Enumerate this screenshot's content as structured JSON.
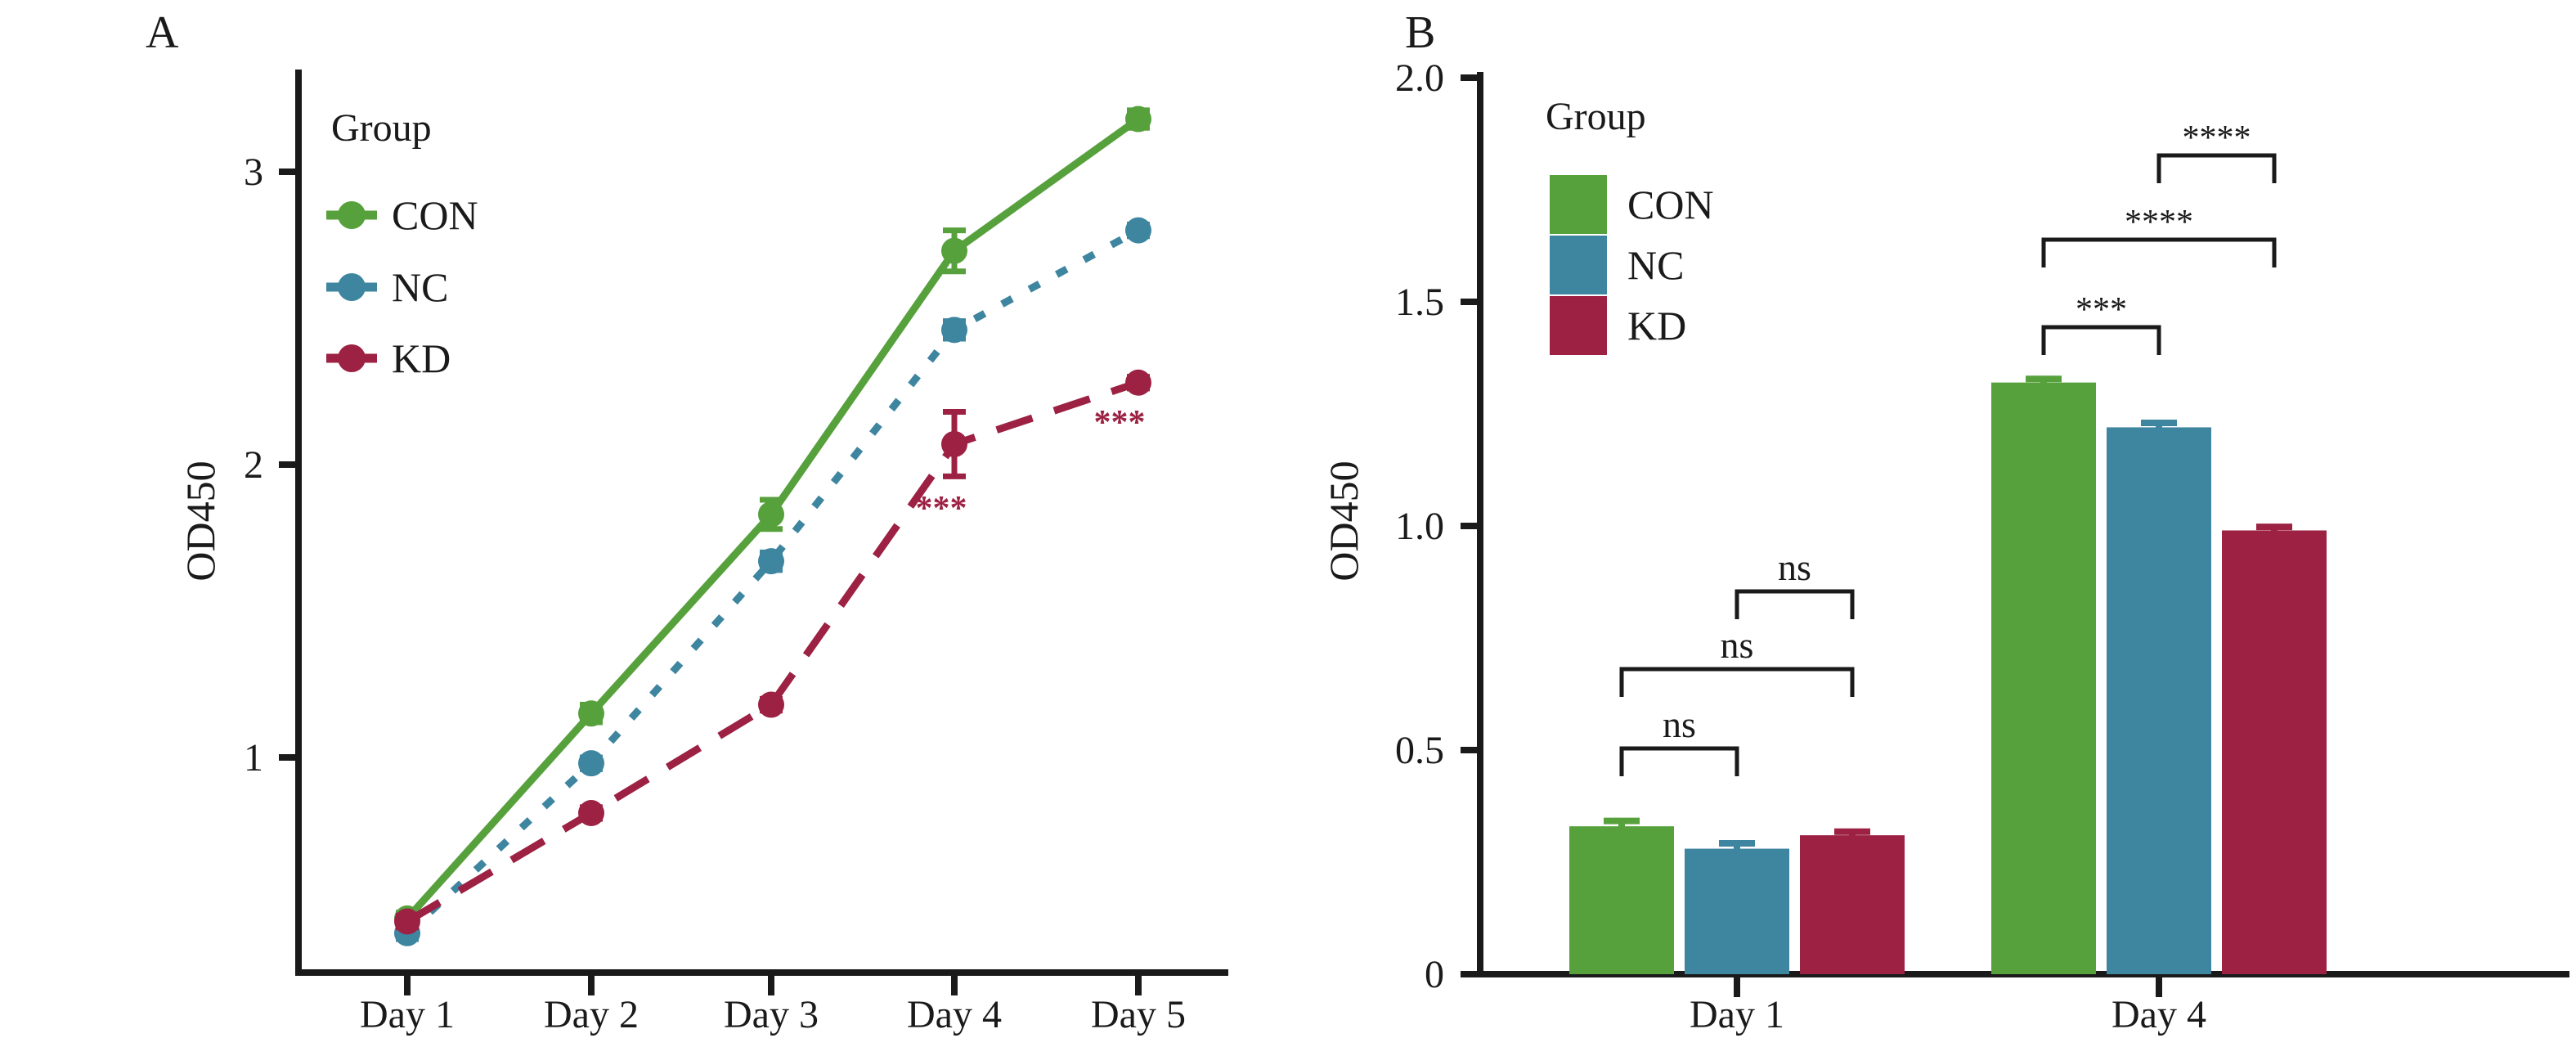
{
  "figure": {
    "background": "#ffffff",
    "axis_color": "#1a1a1a"
  },
  "colors": {
    "CON": "#57a13d",
    "NC": "#3e85a0",
    "KD": "#9c2143",
    "axis": "#1a1a1a"
  },
  "chart_data": [
    {
      "type": "line",
      "panel_label": "A",
      "ylabel": "OD450",
      "xlabel": "",
      "categories": [
        "Day 1",
        "Day 2",
        "Day 3",
        "Day 4",
        "Day 5"
      ],
      "yticks": [
        1,
        2,
        3
      ],
      "ytick_labels": [
        "1",
        "2",
        "3"
      ],
      "ylim": [
        0.27,
        3.37
      ],
      "grid": false,
      "legend_title": "Group",
      "legend_position": "inside-top-left",
      "series": [
        {
          "name": "CON",
          "color": "#57a13d",
          "line_style": "solid",
          "marker": "circle",
          "values": [
            0.45,
            1.15,
            1.83,
            2.73,
            3.18
          ],
          "errors": [
            0.02,
            0.03,
            0.05,
            0.07,
            0.03
          ]
        },
        {
          "name": "NC",
          "color": "#3e85a0",
          "line_style": "dotted",
          "marker": "circle",
          "values": [
            0.4,
            0.98,
            1.67,
            2.46,
            2.8
          ],
          "errors": [
            0.02,
            0.02,
            0.03,
            0.03,
            0.02
          ]
        },
        {
          "name": "KD",
          "color": "#9c2143",
          "line_style": "dashed",
          "marker": "circle",
          "values": [
            0.44,
            0.81,
            1.18,
            2.07,
            2.28
          ],
          "errors": [
            0.02,
            0.02,
            0.02,
            0.11,
            0.02
          ]
        }
      ],
      "annotations": [
        {
          "text": "***",
          "x_category": "Day 4",
          "series": "KD",
          "color": "#9c2143",
          "position": "below-left"
        },
        {
          "text": "***",
          "x_category": "Day 5",
          "series": "KD",
          "color": "#9c2143",
          "position": "below-left"
        }
      ]
    },
    {
      "type": "bar",
      "panel_label": "B",
      "ylabel": "OD450",
      "xlabel": "",
      "categories": [
        "Day 1",
        "Day 4"
      ],
      "yticks": [
        0,
        0.5,
        1.0,
        1.5,
        2.0
      ],
      "ytick_labels": [
        "0",
        "0.5",
        "1.0",
        "1.5",
        "2.0"
      ],
      "ylim": [
        0,
        2.0
      ],
      "grid": false,
      "legend_title": "Group",
      "legend_position": "inside-top-left",
      "series": [
        {
          "name": "CON",
          "color": "#57a13d",
          "values": [
            0.33,
            1.32
          ],
          "errors": [
            0.012,
            0.008
          ]
        },
        {
          "name": "NC",
          "color": "#3e85a0",
          "values": [
            0.28,
            1.22
          ],
          "errors": [
            0.012,
            0.01
          ]
        },
        {
          "name": "KD",
          "color": "#9c2143",
          "values": [
            0.31,
            0.99
          ],
          "errors": [
            0.008,
            0.008
          ]
        }
      ],
      "significance_brackets": [
        {
          "category": "Day 1",
          "from": "CON",
          "to": "NC",
          "label": "ns",
          "level": 1
        },
        {
          "category": "Day 1",
          "from": "CON",
          "to": "KD",
          "label": "ns",
          "level": 2
        },
        {
          "category": "Day 1",
          "from": "NC",
          "to": "KD",
          "label": "ns",
          "level": 3
        },
        {
          "category": "Day 4",
          "from": "CON",
          "to": "NC",
          "label": "***",
          "level": 1
        },
        {
          "category": "Day 4",
          "from": "CON",
          "to": "KD",
          "label": "****",
          "level": 2
        },
        {
          "category": "Day 4",
          "from": "NC",
          "to": "KD",
          "label": "****",
          "level": 3
        }
      ]
    }
  ]
}
